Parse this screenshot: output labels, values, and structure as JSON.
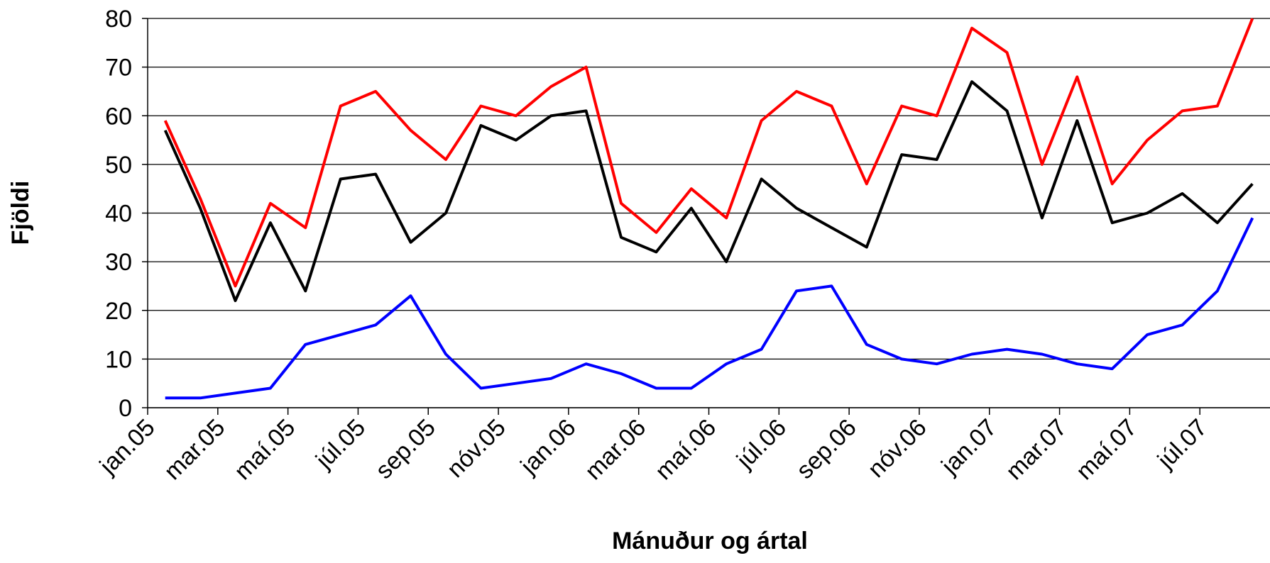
{
  "chart_data": {
    "type": "line",
    "xlabel": "Mánuður og ártal",
    "ylabel": "Fjöldi",
    "categories": [
      "jan.05",
      null,
      "mar.05",
      null,
      "maí.05",
      null,
      "júl.05",
      null,
      "sep.05",
      null,
      "nóv.05",
      null,
      "jan.06",
      null,
      "mar.06",
      null,
      "maí.06",
      null,
      "júl.06",
      null,
      "sep.06",
      null,
      "nóv.06",
      null,
      "jan.07",
      null,
      "mar.07",
      null,
      "maí.07",
      null,
      "júl.07",
      null
    ],
    "series": [
      {
        "color": "#ff0000",
        "values": [
          59,
          43,
          25,
          42,
          37,
          62,
          65,
          57,
          51,
          62,
          60,
          66,
          70,
          42,
          36,
          45,
          39,
          59,
          65,
          62,
          46,
          62,
          60,
          78,
          73,
          50,
          68,
          46,
          55,
          61,
          62,
          80
        ]
      },
      {
        "color": "#000000",
        "values": [
          57,
          41,
          22,
          38,
          24,
          47,
          48,
          34,
          40,
          58,
          55,
          60,
          61,
          35,
          32,
          41,
          30,
          47,
          41,
          37,
          33,
          52,
          51,
          67,
          61,
          39,
          59,
          38,
          40,
          44,
          38,
          46
        ]
      },
      {
        "color": "#0000ff",
        "values": [
          2,
          2,
          3,
          4,
          13,
          15,
          17,
          23,
          11,
          4,
          5,
          6,
          9,
          7,
          4,
          4,
          9,
          12,
          24,
          25,
          13,
          10,
          9,
          11,
          12,
          11,
          9,
          8,
          15,
          17,
          24,
          39
        ]
      }
    ],
    "ylim": [
      0,
      80
    ],
    "yticks": [
      0,
      10,
      20,
      30,
      40,
      50,
      60,
      70,
      80
    ],
    "grid": true
  }
}
